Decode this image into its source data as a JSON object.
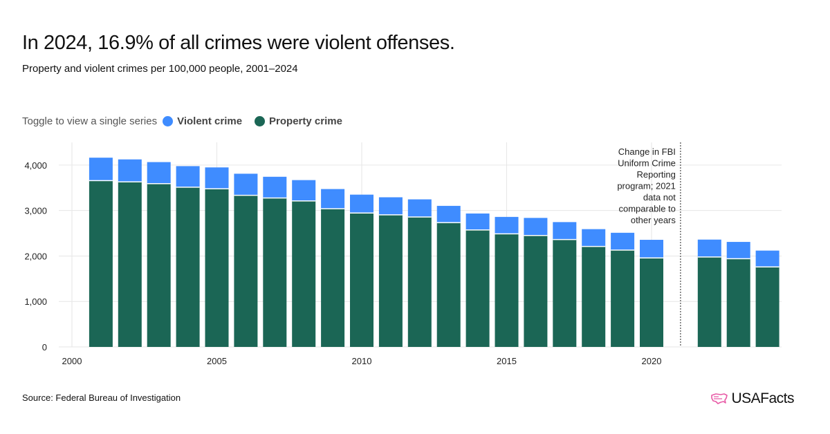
{
  "title": "In 2024, 16.9% of all crimes were violent offenses.",
  "subtitle": "Property and violent crimes per 100,000 people, 2001–2024",
  "legend": {
    "prompt": "Toggle to view a single series",
    "violent_label": "Violent crime",
    "property_label": "Property crime"
  },
  "colors": {
    "violent": "#3f8cff",
    "property": "#1b6655",
    "grid": "#e6e6e6",
    "text": "#222222",
    "brand_pink": "#e85aa6"
  },
  "chart_data": {
    "type": "bar",
    "stacked": true,
    "x": [
      2001,
      2002,
      2003,
      2004,
      2005,
      2006,
      2007,
      2008,
      2009,
      2010,
      2011,
      2012,
      2013,
      2014,
      2015,
      2016,
      2017,
      2018,
      2019,
      2020,
      2022,
      2023,
      2024
    ],
    "series": [
      {
        "name": "Property crime",
        "values": [
          3658,
          3631,
          3591,
          3514,
          3480,
          3336,
          3276,
          3212,
          3041,
          2946,
          2905,
          2859,
          2734,
          2574,
          2487,
          2451,
          2362,
          2210,
          2131,
          1958,
          1978,
          1940,
          1760
        ]
      },
      {
        "name": "Violent crime",
        "values": [
          505,
          494,
          475,
          463,
          469,
          474,
          467,
          458,
          432,
          404,
          387,
          387,
          369,
          361,
          373,
          387,
          384,
          381,
          380,
          398,
          383,
          370,
          359
        ]
      }
    ],
    "xlim": [
      2000,
      2024.5
    ],
    "xticks": [
      2000,
      2005,
      2010,
      2015,
      2020
    ],
    "xtick_labels": [
      "2000",
      "2005",
      "2010",
      "2015",
      "2020"
    ],
    "ylim": [
      0,
      4500
    ],
    "yticks": [
      0,
      1000,
      2000,
      3000,
      4000
    ],
    "ytick_labels": [
      "0",
      "1,000",
      "2,000",
      "3,000",
      "4,000"
    ],
    "grid": true,
    "annotation": {
      "x": 2021,
      "lines": [
        "Change in FBI",
        "Uniform Crime",
        "Reporting",
        "program; 2021",
        "data not",
        "comparable to",
        "other years"
      ]
    },
    "xlabel": "",
    "ylabel": ""
  },
  "source": "Source: Federal Bureau of Investigation",
  "brand": {
    "name": "USAFacts",
    "logo_icon": "us-map-outline-icon"
  }
}
